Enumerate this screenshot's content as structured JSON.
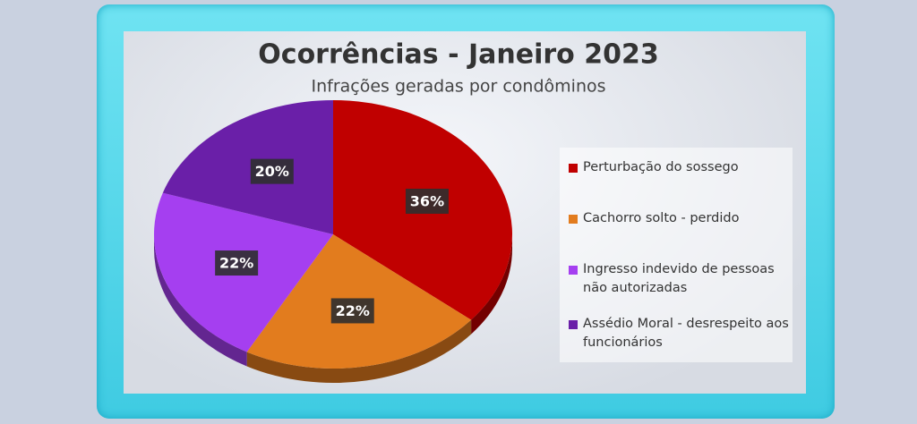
{
  "chart_data": {
    "type": "pie",
    "title": "Ocorrências - Janeiro 2023",
    "subtitle": "Infrações geradas por condôminos",
    "categories": [
      "Perturbação do sossego",
      "Cachorro solto - perdido",
      "Ingresso indevido de pessoas não autorizadas",
      "Assédio Moral  - desrespeito aos funcionários"
    ],
    "values": [
      36,
      22,
      22,
      20
    ],
    "value_labels": [
      "36%",
      "22%",
      "22%",
      "20%"
    ],
    "colors": [
      "#c00000",
      "#e27c1e",
      "#a53ff0",
      "#6a1fa8"
    ]
  }
}
